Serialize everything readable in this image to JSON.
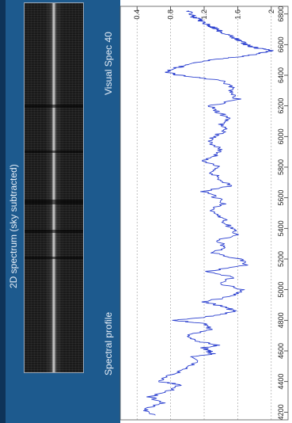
{
  "header": {
    "spectrum_title": "2D spectrum (sky subtracted)",
    "profile_title": "Spectral profile",
    "software_title": "Visual Spec 40"
  },
  "colors": {
    "panel_blue": "#1d5a8e",
    "trace": "#2a3fcf",
    "grid": "#9a9a9a"
  },
  "chart_data": {
    "type": "line",
    "title": "Spectral profile",
    "xlabel": "",
    "ylabel": "",
    "xlim": [
      4150,
      6850
    ],
    "ylim": [
      0.2,
      2.2
    ],
    "xticks": [
      4200,
      4400,
      4600,
      4800,
      5000,
      5200,
      5400,
      5600,
      5800,
      6000,
      6200,
      6400,
      6600,
      6800
    ],
    "yticks": [
      0.4,
      0.8,
      1.2,
      1.6,
      2.0
    ],
    "ytick_labels": [
      "0.4",
      "0.8",
      "1.2",
      "1.6",
      "2"
    ],
    "grid": true,
    "series": [
      {
        "x": [
          4180,
          4220,
          4260,
          4300,
          4340,
          4380,
          4400,
          4440,
          4480,
          4520,
          4560,
          4580,
          4600,
          4620,
          4640,
          4660,
          4700,
          4740,
          4780,
          4800,
          4820,
          4840,
          4860,
          4880,
          4900,
          4920,
          4960,
          5000,
          5040,
          5080,
          5120,
          5160,
          5200,
          5240,
          5280,
          5320,
          5360,
          5400,
          5440,
          5480,
          5520,
          5560,
          5600,
          5640,
          5680,
          5720,
          5760,
          5800,
          5840,
          5880,
          5920,
          5960,
          6000,
          6040,
          6080,
          6120,
          6160,
          6200,
          6240,
          6280,
          6320,
          6360,
          6380,
          6400,
          6420,
          6440,
          6460,
          6480,
          6500,
          6520,
          6540,
          6560,
          6570,
          6580,
          6600,
          6620,
          6640,
          6660,
          6680,
          6700,
          6720,
          6740,
          6760,
          6780,
          6800,
          6820
        ],
        "y": [
          0.62,
          0.48,
          0.72,
          0.55,
          0.78,
          0.92,
          0.65,
          0.8,
          0.95,
          1.1,
          1.05,
          1.3,
          1.25,
          1.2,
          1.38,
          1.15,
          1.0,
          1.3,
          1.18,
          0.85,
          1.2,
          1.4,
          1.55,
          1.48,
          1.35,
          1.2,
          1.55,
          1.65,
          1.4,
          1.55,
          1.25,
          1.7,
          1.62,
          1.3,
          1.45,
          1.35,
          1.6,
          1.52,
          1.45,
          1.4,
          1.28,
          1.45,
          1.35,
          1.2,
          1.52,
          1.4,
          1.3,
          1.38,
          1.18,
          1.35,
          1.4,
          1.28,
          1.32,
          1.45,
          1.4,
          1.52,
          1.35,
          1.28,
          1.6,
          1.55,
          1.52,
          1.45,
          1.2,
          0.9,
          0.75,
          0.8,
          0.95,
          1.1,
          1.3,
          1.6,
          1.85,
          2.0,
          1.92,
          1.8,
          1.7,
          1.65,
          1.58,
          1.5,
          1.42,
          1.35,
          1.28,
          1.2,
          1.15,
          1.08,
          1.05,
          1.02
        ]
      }
    ]
  }
}
